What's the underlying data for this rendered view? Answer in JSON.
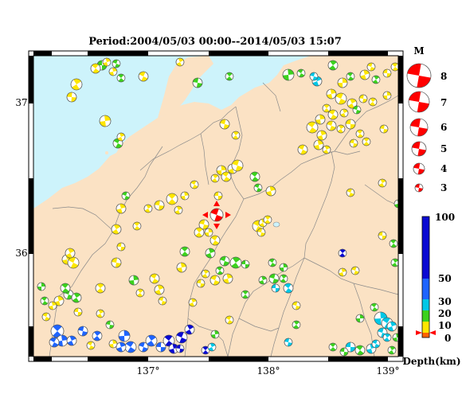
{
  "map": {
    "title": "Period:2004/05/03 00:00--2014/05/03 15:07",
    "lat_labels": [
      "37°",
      "36°"
    ],
    "lon_labels": [
      "137°",
      "138°",
      "139°"
    ],
    "colors": {
      "land": "#fbe2c4",
      "sea": "#cdf3fb",
      "border": "#8a8a8a",
      "frame": "#000000",
      "mainshock": "#ff0000"
    }
  },
  "legend": {
    "magnitude_title": "M",
    "magnitudes": [
      "8",
      "7",
      "6",
      "5",
      "4",
      "3"
    ],
    "depth_title": "Depth(km)",
    "depth_ticks": [
      "100",
      "50",
      "30",
      "20",
      "10",
      "0"
    ],
    "depth_colors": [
      "#0a0ad2",
      "#1e64ff",
      "#00c8e6",
      "#3cd21e",
      "#ffe600",
      "#ff6400"
    ]
  }
}
